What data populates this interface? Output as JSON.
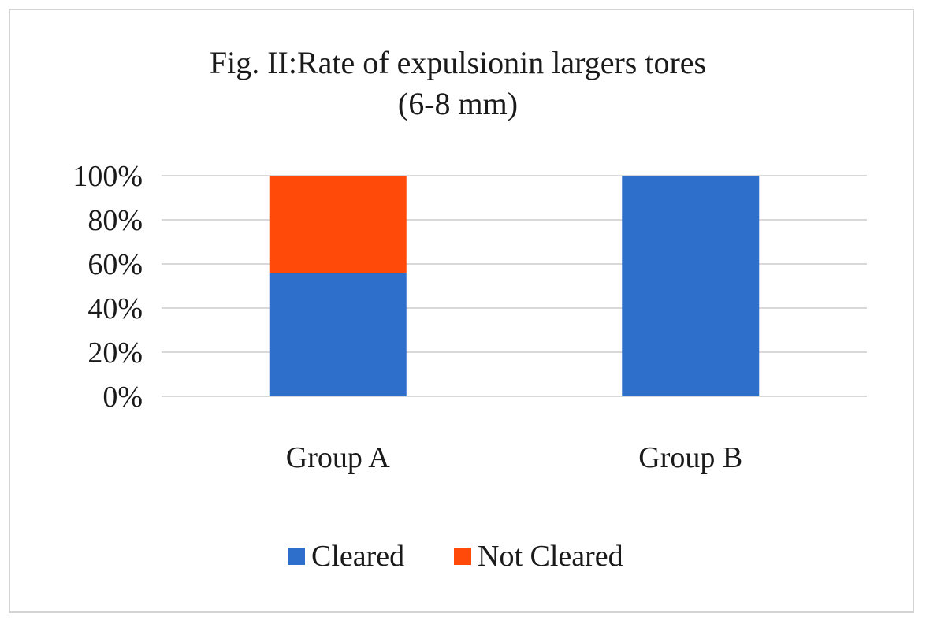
{
  "chart_data": {
    "type": "bar",
    "stacked": true,
    "title": "Fig. II:Rate of expulsionin largers tores",
    "subtitle": "(6-8 mm)",
    "categories": [
      "Group A",
      "Group B"
    ],
    "series": [
      {
        "name": "Cleared",
        "values": [
          56,
          100
        ],
        "color": "#2E6FCC"
      },
      {
        "name": "Not Cleared",
        "values": [
          44,
          0
        ],
        "color": "#FF4A0A"
      }
    ],
    "y_ticks": [
      "0%",
      "20%",
      "40%",
      "60%",
      "80%",
      "100%"
    ],
    "ylim": [
      0,
      100
    ],
    "grid": true,
    "legend_position": "bottom"
  }
}
